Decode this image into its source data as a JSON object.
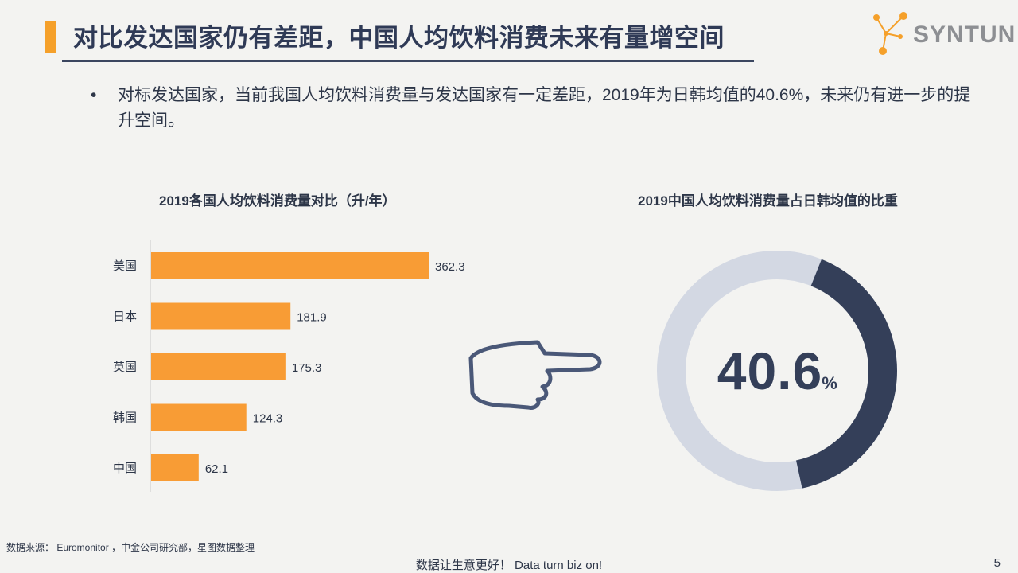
{
  "header": {
    "title": "对比发达国家仍有差距，中国人均饮料消费未来有量增空间",
    "logo_text": "SYNTUN",
    "accent_color": "#f5a02a"
  },
  "bullet": {
    "marker": "•",
    "text": "对标发达国家，当前我国人均饮料消费量与发达国家有一定差距，2019年为日韩均值的40.6%，未来仍有进一步的提升空间。"
  },
  "chart_data": [
    {
      "type": "bar",
      "orientation": "horizontal",
      "title": "2019各国人均饮料消费量对比（升/年）",
      "categories": [
        "美国",
        "日本",
        "英国",
        "韩国",
        "中国"
      ],
      "values": [
        362.3,
        181.9,
        175.3,
        124.3,
        62.1
      ],
      "value_labels": [
        "362.3",
        "181.9",
        "175.3",
        "124.3",
        "62.1"
      ],
      "bar_color": "#f89c35",
      "xlim": [
        0,
        362.3
      ],
      "grid": false
    },
    {
      "type": "pie",
      "variant": "donut",
      "title": "2019中国人均饮料消费量占日韩均值的比重",
      "value": 40.6,
      "center_label": "40.6",
      "center_unit": "%",
      "filled_color": "#343f59",
      "remainder_color": "#d3d8e3"
    }
  ],
  "pointer": {
    "icon": "pointing-hand-icon",
    "color": "#4a5878"
  },
  "footer": {
    "source": "数据来源： Euromonitor ，中金公司研究部，星图数据整理",
    "slogan": "数据让生意更好！ Data turn biz on!",
    "page_number": "5"
  }
}
